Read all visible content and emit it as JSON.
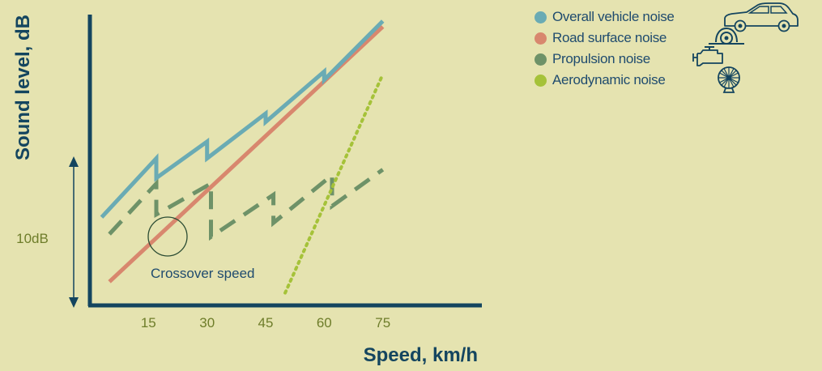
{
  "chart_data": {
    "type": "line",
    "title": "",
    "xlabel": "Speed, km/h",
    "ylabel": "Sound level, dB",
    "x_ticks": [
      15,
      30,
      45,
      60,
      75
    ],
    "xlim": [
      0,
      90
    ],
    "ylim": [
      0,
      100
    ],
    "scale_bar": {
      "label": "10dB"
    },
    "annotation": {
      "text": "Crossover speed",
      "x": 20,
      "y": 26
    },
    "series": [
      {
        "name": "Overall vehicle noise",
        "color": "#6aabb4",
        "style": "solid",
        "icon": "car-icon",
        "points": [
          [
            3,
            30
          ],
          [
            17,
            51
          ],
          [
            17,
            44
          ],
          [
            30,
            57
          ],
          [
            30,
            51
          ],
          [
            45,
            67
          ],
          [
            45,
            64
          ],
          [
            60,
            82
          ],
          [
            60,
            79
          ],
          [
            75,
            100
          ]
        ]
      },
      {
        "name": "Road surface noise",
        "color": "#d8876e",
        "style": "solid",
        "icon": "tire-icon",
        "points": [
          [
            5,
            7
          ],
          [
            75,
            98
          ]
        ]
      },
      {
        "name": "Propulsion noise",
        "color": "#6e9268",
        "style": "dashed",
        "icon": "engine-icon",
        "points": [
          [
            5,
            24
          ],
          [
            17,
            42
          ],
          [
            17,
            31
          ],
          [
            31,
            42
          ],
          [
            31,
            23
          ],
          [
            47,
            38
          ],
          [
            47,
            28
          ],
          [
            62,
            45
          ],
          [
            62,
            34
          ],
          [
            75,
            47
          ]
        ]
      },
      {
        "name": "Aerodynamic noise",
        "color": "#a5c239",
        "style": "dotted",
        "icon": "fan-icon",
        "points": [
          [
            50,
            3
          ],
          [
            75,
            81
          ]
        ]
      }
    ]
  }
}
